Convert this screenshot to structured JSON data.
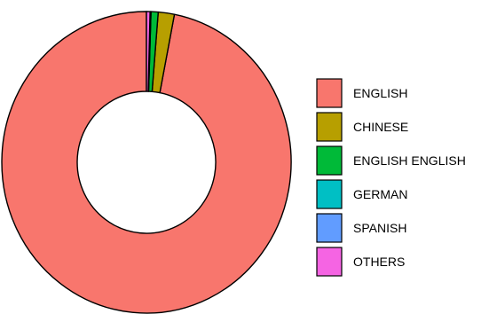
{
  "chart_data": {
    "type": "pie",
    "variant": "donut",
    "title": "",
    "categories": [
      "ENGLISH",
      "CHINESE",
      "ENGLISH ENGLISH",
      "GERMAN",
      "SPANISH",
      "OTHERS"
    ],
    "values": [
      96.9,
      1.8,
      0.8,
      0.05,
      0.05,
      0.4
    ],
    "unit": "percent",
    "colors": [
      "#F8766D",
      "#B79F00",
      "#00BA38",
      "#00BFC4",
      "#619CFF",
      "#F564E3"
    ],
    "legend": {
      "position": "right"
    }
  }
}
